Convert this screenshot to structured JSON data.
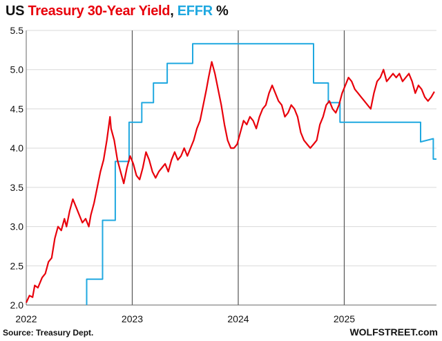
{
  "title": {
    "part1": "US ",
    "part2": "Treasury 30-Year Yield",
    "part3": ", ",
    "part4": "EFFR",
    "part5": " %"
  },
  "source": "Source: Treasury Dept.",
  "brand": "WOLFSTREET.com",
  "colors": {
    "treasury": "#e8000b",
    "effr": "#1fa8e0",
    "grid": "#d9d9d9",
    "vline": "#555555"
  },
  "chart_data": {
    "type": "line",
    "xlim": [
      2022.0,
      2025.87
    ],
    "ylim": [
      2.0,
      5.5
    ],
    "y_ticks": [
      "2.0",
      "2.5",
      "3.0",
      "3.5",
      "4.0",
      "4.5",
      "5.0",
      "5.5"
    ],
    "x_ticks": [
      {
        "label": "2022",
        "x": 2022
      },
      {
        "label": "2023",
        "x": 2023
      },
      {
        "label": "2024",
        "x": 2024
      },
      {
        "label": "2025",
        "x": 2025
      }
    ],
    "grid": true,
    "series": [
      {
        "name": "Treasury 30-Year Yield",
        "color": "#e8000b",
        "x": [
          2022.0,
          2022.03,
          2022.06,
          2022.08,
          2022.11,
          2022.15,
          2022.18,
          2022.21,
          2022.24,
          2022.27,
          2022.3,
          2022.33,
          2022.36,
          2022.38,
          2022.41,
          2022.44,
          2022.47,
          2022.5,
          2022.53,
          2022.56,
          2022.59,
          2022.61,
          2022.64,
          2022.67,
          2022.7,
          2022.73,
          2022.76,
          2022.79,
          2022.8,
          2022.83,
          2022.86,
          2022.89,
          2022.92,
          2022.95,
          2022.98,
          2023.01,
          2023.04,
          2023.07,
          2023.1,
          2023.13,
          2023.16,
          2023.19,
          2023.22,
          2023.25,
          2023.28,
          2023.31,
          2023.34,
          2023.37,
          2023.4,
          2023.43,
          2023.46,
          2023.49,
          2023.52,
          2023.55,
          2023.58,
          2023.61,
          2023.64,
          2023.67,
          2023.7,
          2023.72,
          2023.75,
          2023.78,
          2023.81,
          2023.84,
          2023.87,
          2023.9,
          2023.93,
          2023.96,
          2023.99,
          2024.02,
          2024.05,
          2024.08,
          2024.11,
          2024.14,
          2024.17,
          2024.2,
          2024.23,
          2024.26,
          2024.29,
          2024.32,
          2024.35,
          2024.38,
          2024.41,
          2024.44,
          2024.47,
          2024.5,
          2024.53,
          2024.56,
          2024.59,
          2024.62,
          2024.65,
          2024.68,
          2024.71,
          2024.74,
          2024.77,
          2024.8,
          2024.83,
          2024.86,
          2024.89,
          2024.92,
          2024.95,
          2024.98,
          2025.01,
          2025.04,
          2025.07,
          2025.1,
          2025.13,
          2025.16,
          2025.19,
          2025.22,
          2025.25,
          2025.28,
          2025.31,
          2025.34,
          2025.37,
          2025.4,
          2025.43,
          2025.46,
          2025.49,
          2025.52,
          2025.55,
          2025.58,
          2025.61,
          2025.64,
          2025.67,
          2025.7,
          2025.73,
          2025.76,
          2025.79,
          2025.82,
          2025.85
        ],
        "y": [
          2.03,
          2.12,
          2.1,
          2.25,
          2.22,
          2.35,
          2.4,
          2.55,
          2.6,
          2.85,
          3.0,
          2.95,
          3.1,
          3.0,
          3.2,
          3.35,
          3.25,
          3.15,
          3.05,
          3.1,
          3.0,
          3.15,
          3.3,
          3.5,
          3.7,
          3.85,
          4.1,
          4.4,
          4.25,
          4.1,
          3.85,
          3.7,
          3.55,
          3.75,
          3.9,
          3.8,
          3.65,
          3.6,
          3.75,
          3.95,
          3.85,
          3.7,
          3.62,
          3.7,
          3.75,
          3.8,
          3.7,
          3.85,
          3.95,
          3.85,
          3.9,
          4.0,
          3.9,
          4.0,
          4.1,
          4.25,
          4.35,
          4.55,
          4.75,
          4.9,
          5.1,
          4.95,
          4.75,
          4.55,
          4.3,
          4.1,
          4.0,
          4.0,
          4.05,
          4.2,
          4.35,
          4.3,
          4.4,
          4.35,
          4.25,
          4.4,
          4.5,
          4.55,
          4.7,
          4.8,
          4.7,
          4.6,
          4.55,
          4.4,
          4.45,
          4.55,
          4.5,
          4.4,
          4.2,
          4.1,
          4.05,
          4.0,
          4.05,
          4.1,
          4.3,
          4.4,
          4.55,
          4.6,
          4.5,
          4.45,
          4.55,
          4.7,
          4.8,
          4.9,
          4.85,
          4.75,
          4.7,
          4.65,
          4.6,
          4.55,
          4.5,
          4.7,
          4.85,
          4.9,
          5.0,
          4.85,
          4.9,
          4.95,
          4.9,
          4.95,
          4.85,
          4.9,
          4.95,
          4.85,
          4.7,
          4.8,
          4.75,
          4.65,
          4.6,
          4.65,
          4.72
        ]
      },
      {
        "name": "EFFR",
        "color": "#1fa8e0",
        "x": [
          2022.57,
          2022.57,
          2022.72,
          2022.72,
          2022.84,
          2022.84,
          2022.97,
          2022.97,
          2023.09,
          2023.09,
          2023.2,
          2023.2,
          2023.33,
          2023.33,
          2023.57,
          2023.57,
          2024.71,
          2024.71,
          2024.85,
          2024.85,
          2024.96,
          2024.96,
          2025.72,
          2025.72,
          2025.84,
          2025.84,
          2025.87
        ],
        "y": [
          2.0,
          2.33,
          2.33,
          3.08,
          3.08,
          3.83,
          3.83,
          4.33,
          4.33,
          4.58,
          4.58,
          4.83,
          4.83,
          5.08,
          5.08,
          5.33,
          5.33,
          4.83,
          4.83,
          4.58,
          4.58,
          4.33,
          4.33,
          4.08,
          4.12,
          3.86,
          3.86
        ]
      }
    ]
  }
}
